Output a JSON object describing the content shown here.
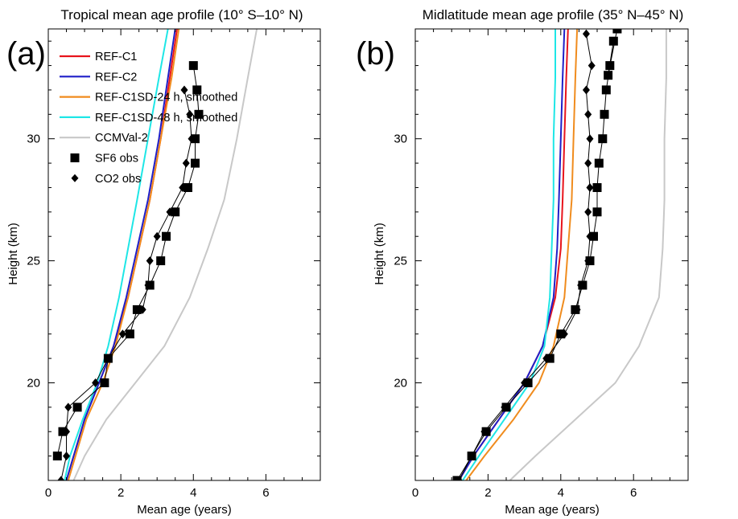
{
  "colors": {
    "REF-C1": "#e8141c",
    "REF-C2": "#1f1fc8",
    "REF-C1SD-24": "#f08c1e",
    "REF-C1SD-48": "#1ee6e6",
    "CCMVal-2": "#c8c8c8",
    "obs": "#000000"
  },
  "chart_data": [
    {
      "type": "line",
      "panel_label": "(a)",
      "title": "Tropical mean age profile (10° S–10° N)",
      "xlabel": "Mean age (years)",
      "ylabel": "Height (km)",
      "xlim": [
        0,
        7.5
      ],
      "ylim": [
        16.0,
        34.5
      ],
      "xticks": [
        0,
        2,
        4,
        6
      ],
      "yticks": [
        20,
        25,
        30
      ],
      "legend": {
        "placement": "top-left",
        "entries": [
          "REF-C1",
          "REF-C2",
          "REF-C1SD-24 h, smoothed",
          "REF-C1SD-48 h, smoothed",
          "CCMVal-2",
          "SF6 obs",
          "CO2 obs"
        ]
      },
      "series": [
        {
          "name": "REF-C1",
          "x": [
            0.5,
            0.7,
            1.0,
            1.4,
            1.8,
            2.2,
            2.5,
            2.8,
            3.1,
            3.35,
            3.55
          ],
          "y": [
            16.0,
            17.0,
            18.5,
            20.0,
            21.5,
            23.5,
            25.5,
            27.5,
            30.0,
            32.5,
            34.5
          ]
        },
        {
          "name": "REF-C2",
          "x": [
            0.5,
            0.7,
            1.0,
            1.4,
            1.8,
            2.15,
            2.45,
            2.75,
            3.05,
            3.3,
            3.5
          ],
          "y": [
            16.0,
            17.0,
            18.5,
            20.0,
            21.5,
            23.5,
            25.5,
            27.5,
            30.0,
            32.5,
            34.5
          ]
        },
        {
          "name": "REF-C1SD-24 h, smoothed",
          "x": [
            0.55,
            0.75,
            1.05,
            1.5,
            1.85,
            2.2,
            2.5,
            2.8,
            3.1,
            3.4,
            3.6
          ],
          "y": [
            16.0,
            17.0,
            18.5,
            20.0,
            21.5,
            23.5,
            25.5,
            27.5,
            30.0,
            32.5,
            34.5
          ]
        },
        {
          "name": "REF-C1SD-48 h, smoothed",
          "x": [
            0.45,
            0.6,
            0.95,
            1.35,
            1.65,
            1.95,
            2.2,
            2.45,
            2.75,
            3.05,
            3.3
          ],
          "y": [
            16.0,
            17.0,
            18.5,
            20.0,
            21.5,
            23.5,
            25.5,
            27.5,
            30.0,
            32.5,
            34.5
          ]
        },
        {
          "name": "CCMVal-2",
          "x": [
            0.7,
            1.0,
            1.6,
            2.4,
            3.2,
            3.9,
            4.4,
            4.85,
            5.2,
            5.5,
            5.75
          ],
          "y": [
            16.0,
            17.0,
            18.5,
            20.0,
            21.5,
            23.5,
            25.5,
            27.5,
            30.0,
            32.5,
            34.5
          ]
        },
        {
          "name": "SF6 obs",
          "marker": "square",
          "x": [
            0.25,
            0.4,
            0.8,
            1.55,
            1.65,
            2.25,
            2.45,
            2.8,
            3.1,
            3.25,
            3.5,
            3.85,
            4.05,
            4.05,
            4.15,
            4.1,
            4.0
          ],
          "y": [
            17,
            18,
            19,
            20,
            21,
            22,
            23,
            24,
            25,
            26,
            27,
            28,
            29,
            30,
            31,
            32,
            33
          ]
        },
        {
          "name": "CO2 obs",
          "marker": "diamond",
          "x": [
            0.35,
            0.5,
            0.5,
            0.55,
            1.3,
            1.65,
            2.05,
            2.6,
            2.75,
            2.8,
            3.0,
            3.35,
            3.7,
            3.8,
            3.95,
            3.9,
            3.75
          ],
          "y": [
            16,
            17,
            18,
            19,
            20,
            21,
            22,
            23,
            24,
            25,
            26,
            27,
            28,
            29,
            30,
            31,
            32
          ]
        }
      ]
    },
    {
      "type": "line",
      "panel_label": "(b)",
      "title": "Midlatitude mean age profile (35° N–45° N)",
      "xlabel": "Mean age (years)",
      "ylabel": "Height (km)",
      "xlim": [
        0,
        7.5
      ],
      "ylim": [
        16.0,
        34.5
      ],
      "xticks": [
        0,
        2,
        4,
        6
      ],
      "yticks": [
        20,
        25,
        30
      ],
      "series": [
        {
          "name": "REF-C1",
          "x": [
            1.2,
            1.6,
            2.3,
            3.0,
            3.5,
            3.85,
            4.0,
            4.05,
            4.1,
            4.15,
            4.2
          ],
          "y": [
            16.0,
            17.0,
            18.5,
            20.0,
            21.5,
            23.5,
            25.5,
            27.5,
            30.0,
            32.5,
            34.5
          ]
        },
        {
          "name": "REF-C2",
          "x": [
            1.2,
            1.6,
            2.3,
            3.0,
            3.5,
            3.8,
            3.9,
            3.95,
            4.0,
            4.05,
            4.1
          ],
          "y": [
            16.0,
            17.0,
            18.5,
            20.0,
            21.5,
            23.5,
            25.5,
            27.5,
            30.0,
            32.5,
            34.5
          ]
        },
        {
          "name": "REF-C1SD-24 h, smoothed",
          "x": [
            1.4,
            1.9,
            2.7,
            3.4,
            3.8,
            4.1,
            4.2,
            4.3,
            4.35,
            4.4,
            4.45
          ],
          "y": [
            16.0,
            17.0,
            18.5,
            20.0,
            21.5,
            23.5,
            25.5,
            27.5,
            30.0,
            32.5,
            34.5
          ]
        },
        {
          "name": "REF-C1SD-48 h, smoothed",
          "x": [
            1.3,
            1.75,
            2.45,
            3.15,
            3.55,
            3.7,
            3.75,
            3.8,
            3.8,
            3.85,
            3.85
          ],
          "y": [
            16.0,
            17.0,
            18.5,
            20.0,
            21.5,
            23.5,
            25.5,
            27.5,
            30.0,
            32.5,
            34.5
          ]
        },
        {
          "name": "CCMVal-2",
          "x": [
            2.6,
            3.3,
            4.4,
            5.5,
            6.15,
            6.7,
            6.8,
            6.85,
            6.85,
            6.9,
            6.9
          ],
          "y": [
            16.0,
            17.0,
            18.5,
            20.0,
            21.5,
            23.5,
            25.5,
            27.5,
            30.0,
            32.5,
            34.5
          ]
        },
        {
          "name": "SF6 obs",
          "marker": "square",
          "x": [
            1.15,
            1.55,
            1.95,
            2.5,
            3.1,
            3.7,
            4.0,
            4.4,
            4.6,
            4.8,
            4.9,
            5.0,
            5.0,
            5.05,
            5.15,
            5.2,
            5.25,
            5.35,
            5.45,
            5.3,
            5.55
          ],
          "y": [
            16.0,
            17.0,
            18.0,
            19.0,
            20.0,
            21.0,
            22.0,
            23.0,
            24.0,
            25.0,
            26.0,
            27.0,
            28.0,
            29.0,
            30.0,
            31.0,
            32.0,
            33.0,
            34.0,
            32.6,
            34.5
          ]
        },
        {
          "name": "CO2 obs",
          "marker": "diamond",
          "x": [
            1.2,
            1.55,
            1.9,
            2.45,
            3.0,
            3.6,
            4.1,
            4.45,
            4.55,
            4.75,
            4.8,
            4.75,
            4.8,
            4.75,
            4.8,
            4.75,
            4.7,
            4.85,
            4.7
          ],
          "y": [
            16.0,
            17.0,
            18.0,
            19.0,
            20.0,
            21.0,
            22.0,
            23.0,
            24.0,
            25.0,
            26.0,
            27.0,
            28.0,
            29.0,
            30.0,
            31.0,
            32.0,
            33.0,
            34.3
          ]
        }
      ]
    }
  ]
}
